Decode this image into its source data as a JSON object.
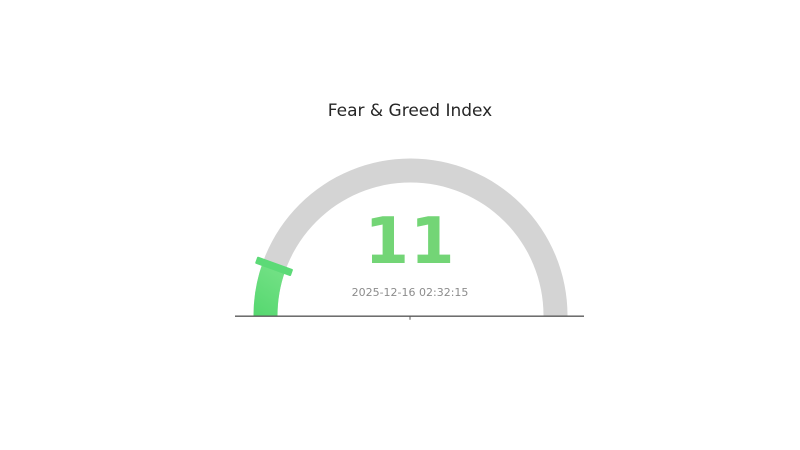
{
  "title": "Fear & Greed Index",
  "chart_data": {
    "type": "gauge",
    "title": "Fear & Greed Index",
    "value": 11,
    "value_display": "11",
    "min": 0,
    "max": 100,
    "start_angle": 180,
    "end_angle": 0,
    "timestamp": "2025-12-16 02:32:15",
    "legend": "none",
    "colors": {
      "track": "#d4d4d4",
      "progress_dark": "#55d76f",
      "progress_light": "#7ce48c",
      "marker": "#5cda77",
      "value_text": "#73d576",
      "timestamp_text": "#8c8c8c",
      "title_text": "#262626",
      "axis_line": "#595959"
    }
  }
}
